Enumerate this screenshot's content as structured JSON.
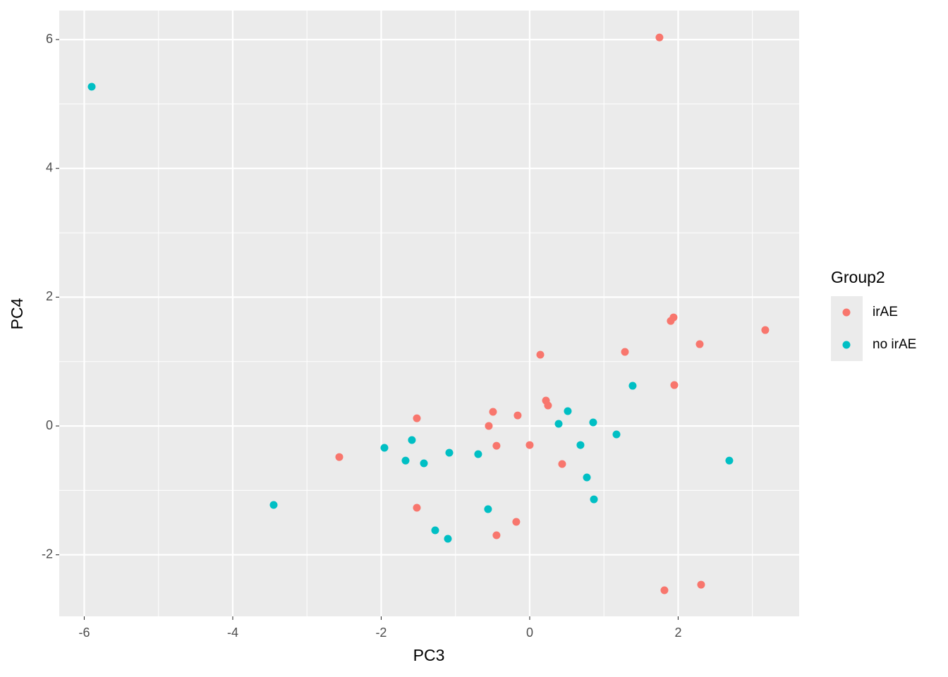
{
  "chart_data": {
    "type": "scatter",
    "x_label": "PC3",
    "y_label": "PC4",
    "legend_title": "Group2",
    "legend_position": "right",
    "grid": true,
    "minor_grid": true,
    "xlim": [
      -6.337,
      3.63
    ],
    "ylim": [
      -2.956,
      6.45
    ],
    "xticks": [
      -6,
      -4,
      -2,
      0,
      2
    ],
    "yticks": [
      -2,
      0,
      2,
      4,
      6
    ],
    "series": [
      {
        "name": "irAE",
        "color": "#f8766d",
        "x": [
          1.748,
          1.9,
          1.938,
          3.173,
          2.29,
          1.283,
          0.143,
          1.948,
          0.219,
          0.247,
          -0.494,
          -0.162,
          -1.52,
          -0.551,
          -0.447,
          0.0,
          0.437,
          -2.565,
          -1.52,
          -0.181,
          -0.447,
          1.815,
          2.309
        ],
        "values": [
          6.033,
          1.631,
          1.686,
          1.489,
          1.27,
          1.15,
          1.106,
          0.635,
          0.394,
          0.318,
          0.219,
          0.164,
          0.12,
          0.0,
          -0.307,
          -0.296,
          -0.591,
          -0.482,
          -1.27,
          -1.489,
          -1.697,
          -2.551,
          -2.464
        ]
      },
      {
        "name": "no irAE",
        "color": "#00bfc4",
        "x": [
          -5.9,
          1.387,
          0.513,
          0.855,
          0.39,
          1.169,
          0.684,
          -1.587,
          -1.957,
          -1.083,
          -0.694,
          -1.672,
          -1.425,
          2.689,
          0.77,
          0.865,
          -3.449,
          -0.561,
          -1.273,
          -1.102
        ],
        "values": [
          5.267,
          0.624,
          0.23,
          0.055,
          0.033,
          -0.131,
          -0.296,
          -0.219,
          -0.339,
          -0.416,
          -0.438,
          -0.537,
          -0.58,
          -0.537,
          -0.799,
          -1.139,
          -1.226,
          -1.292,
          -1.62,
          -1.752
        ]
      }
    ]
  }
}
